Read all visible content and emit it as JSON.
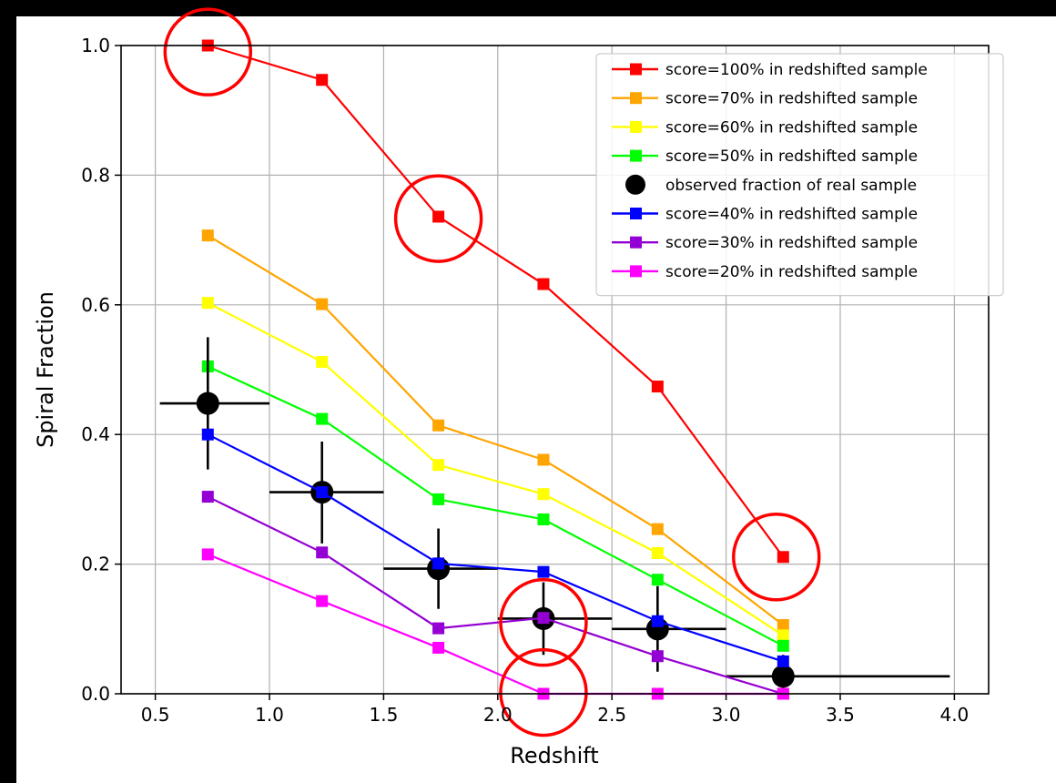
{
  "chart_data": {
    "type": "line",
    "title": "",
    "xlabel": "Redshift",
    "ylabel": "Spiral Fraction",
    "xlim": [
      0.35,
      4.15
    ],
    "ylim": [
      0.0,
      1.0
    ],
    "xticks": [
      0.5,
      1.0,
      1.5,
      2.0,
      2.5,
      3.0,
      3.5,
      4.0
    ],
    "xtick_labels": [
      "0.5",
      "1.0",
      "1.5",
      "2.0",
      "2.5",
      "3.0",
      "3.5",
      "4.0"
    ],
    "yticks": [
      0.0,
      0.2,
      0.4,
      0.6,
      0.8,
      1.0
    ],
    "ytick_labels": [
      "0.0",
      "0.2",
      "0.4",
      "0.6",
      "0.8",
      "1.0"
    ],
    "grid": true,
    "legend_position": "top-right",
    "x": [
      0.73,
      1.23,
      1.74,
      2.2,
      2.7,
      3.25
    ],
    "series": [
      {
        "name": "score=100% in redshifted sample",
        "color": "#ff0000",
        "marker": "square",
        "values": [
          1.0,
          0.947,
          0.736,
          0.632,
          0.474,
          0.211
        ]
      },
      {
        "name": "score=70% in redshifted sample",
        "color": "#ffa500",
        "marker": "square",
        "values": [
          0.707,
          0.601,
          0.414,
          0.361,
          0.254,
          0.106
        ]
      },
      {
        "name": "score=60% in redshifted sample",
        "color": "#ffff00",
        "marker": "square",
        "values": [
          0.603,
          0.512,
          0.353,
          0.308,
          0.217,
          0.09
        ]
      },
      {
        "name": "score=50% in redshifted sample",
        "color": "#00ff00",
        "marker": "square",
        "values": [
          0.505,
          0.424,
          0.3,
          0.269,
          0.176,
          0.074
        ]
      },
      {
        "name": "observed fraction of real sample",
        "color": "#000000",
        "marker": "circle",
        "errorbars": true,
        "points": [
          {
            "x": 0.73,
            "y": 0.448,
            "xlo": 0.52,
            "xhi": 1.0,
            "ylo": 0.346,
            "yhi": 0.55
          },
          {
            "x": 1.23,
            "y": 0.311,
            "xlo": 1.0,
            "xhi": 1.5,
            "ylo": 0.232,
            "yhi": 0.389
          },
          {
            "x": 1.74,
            "y": 0.193,
            "xlo": 1.5,
            "xhi": 2.0,
            "ylo": 0.131,
            "yhi": 0.255
          },
          {
            "x": 2.2,
            "y": 0.116,
            "xlo": 2.0,
            "xhi": 2.5,
            "ylo": 0.06,
            "yhi": 0.172
          },
          {
            "x": 2.7,
            "y": 0.1,
            "xlo": 2.5,
            "xhi": 3.0,
            "ylo": 0.034,
            "yhi": 0.166
          },
          {
            "x": 3.25,
            "y": 0.027,
            "xlo": 3.0,
            "xhi": 3.98,
            "ylo": 0.0,
            "yhi": 0.06
          }
        ]
      },
      {
        "name": "score=40% in redshifted sample",
        "color": "#0000ff",
        "marker": "square",
        "values": [
          0.4,
          0.311,
          0.201,
          0.188,
          0.112,
          0.05
        ]
      },
      {
        "name": "score=30% in redshifted sample",
        "color": "#9400d3",
        "marker": "square",
        "values": [
          0.304,
          0.218,
          0.101,
          0.117,
          0.058,
          0.0
        ]
      },
      {
        "name": "score=20% in redshifted sample",
        "color": "#ff00ff",
        "marker": "square",
        "values": [
          0.215,
          0.143,
          0.071,
          0.0,
          0.0,
          0.0
        ]
      }
    ],
    "annotations": [
      {
        "type": "circle",
        "color": "#ff0000",
        "x": 0.73,
        "y": 0.99
      },
      {
        "type": "circle",
        "color": "#ff0000",
        "x": 1.74,
        "y": 0.733
      },
      {
        "type": "circle",
        "color": "#ff0000",
        "x": 3.22,
        "y": 0.211
      },
      {
        "type": "circle",
        "color": "#ff0000",
        "x": 2.2,
        "y": 0.11
      },
      {
        "type": "circle",
        "color": "#ff0000",
        "x": 2.2,
        "y": 0.002
      }
    ]
  }
}
